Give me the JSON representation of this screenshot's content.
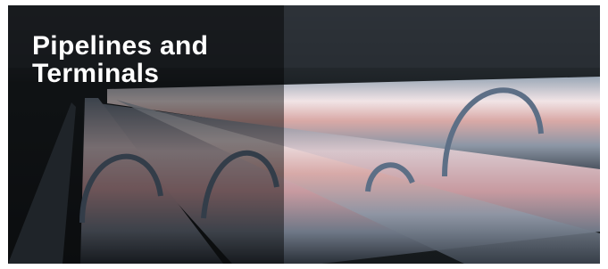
{
  "title": "Pipelines and Terminals"
}
